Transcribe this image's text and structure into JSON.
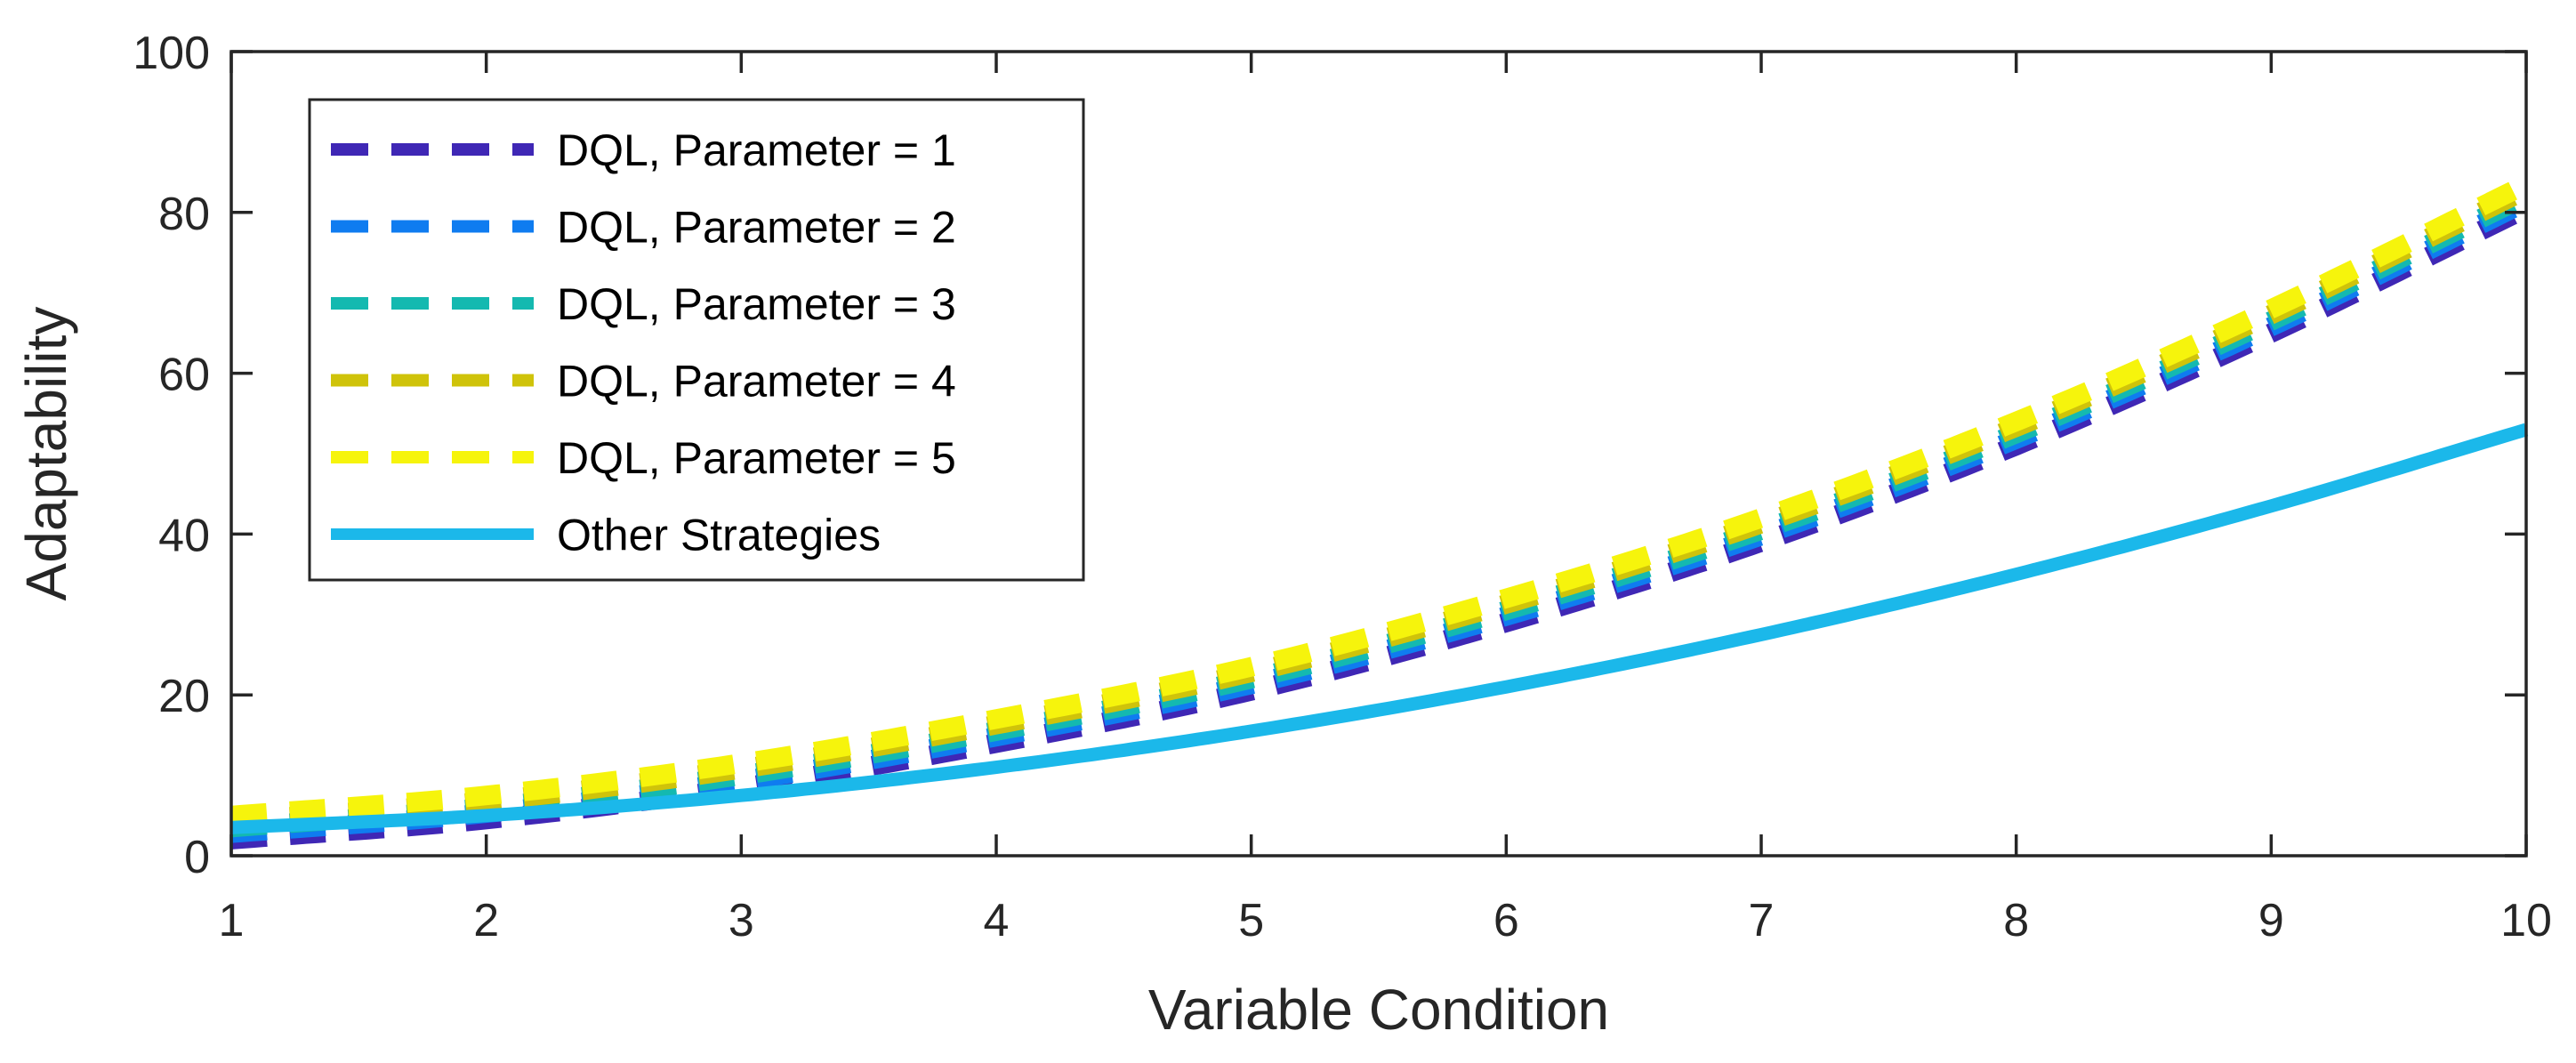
{
  "chart_data": {
    "type": "line",
    "title": "",
    "xlabel": "Variable Condition",
    "ylabel": "Adaptability",
    "xlim": [
      1,
      10
    ],
    "ylim": [
      0,
      100
    ],
    "xticks": [
      1,
      2,
      3,
      4,
      5,
      6,
      7,
      8,
      9,
      10
    ],
    "yticks": [
      0,
      20,
      40,
      60,
      80,
      100
    ],
    "grid": false,
    "legend_position": "top-left",
    "x": [
      1,
      2,
      3,
      4,
      5,
      6,
      7,
      8,
      9,
      10
    ],
    "series": [
      {
        "name": "DQL, Parameter = 1",
        "style": "dashed",
        "color": "#3f27b5",
        "values": [
          2.0,
          4.5,
          8.5,
          14.0,
          20.5,
          29.0,
          39.0,
          51.0,
          65.0,
          80.5
        ]
      },
      {
        "name": "DQL, Parameter = 2",
        "style": "dashed",
        "color": "#0f7cf0",
        "values": [
          2.8,
          5.3,
          9.3,
          14.8,
          21.3,
          29.8,
          39.8,
          51.8,
          65.8,
          81.3
        ]
      },
      {
        "name": "DQL, Parameter = 3",
        "style": "dashed",
        "color": "#14b9b0",
        "values": [
          3.5,
          6.0,
          10.0,
          15.5,
          22.0,
          30.5,
          40.5,
          52.5,
          66.5,
          82.0
        ]
      },
      {
        "name": "DQL, Parameter = 4",
        "style": "dashed",
        "color": "#cfc30a",
        "values": [
          4.3,
          6.8,
          10.8,
          16.3,
          22.8,
          31.3,
          41.3,
          53.3,
          67.3,
          82.8
        ]
      },
      {
        "name": "DQL, Parameter = 5",
        "style": "dashed",
        "color": "#f6f40c",
        "values": [
          5.0,
          7.5,
          11.5,
          17.0,
          23.5,
          32.0,
          42.0,
          54.0,
          68.0,
          83.5
        ]
      },
      {
        "name": "Other Strategies",
        "style": "solid",
        "color": "#1bb8ea",
        "values": [
          3.5,
          5.0,
          7.5,
          11.0,
          15.5,
          21.0,
          27.5,
          35.0,
          43.5,
          53.0
        ]
      }
    ]
  }
}
